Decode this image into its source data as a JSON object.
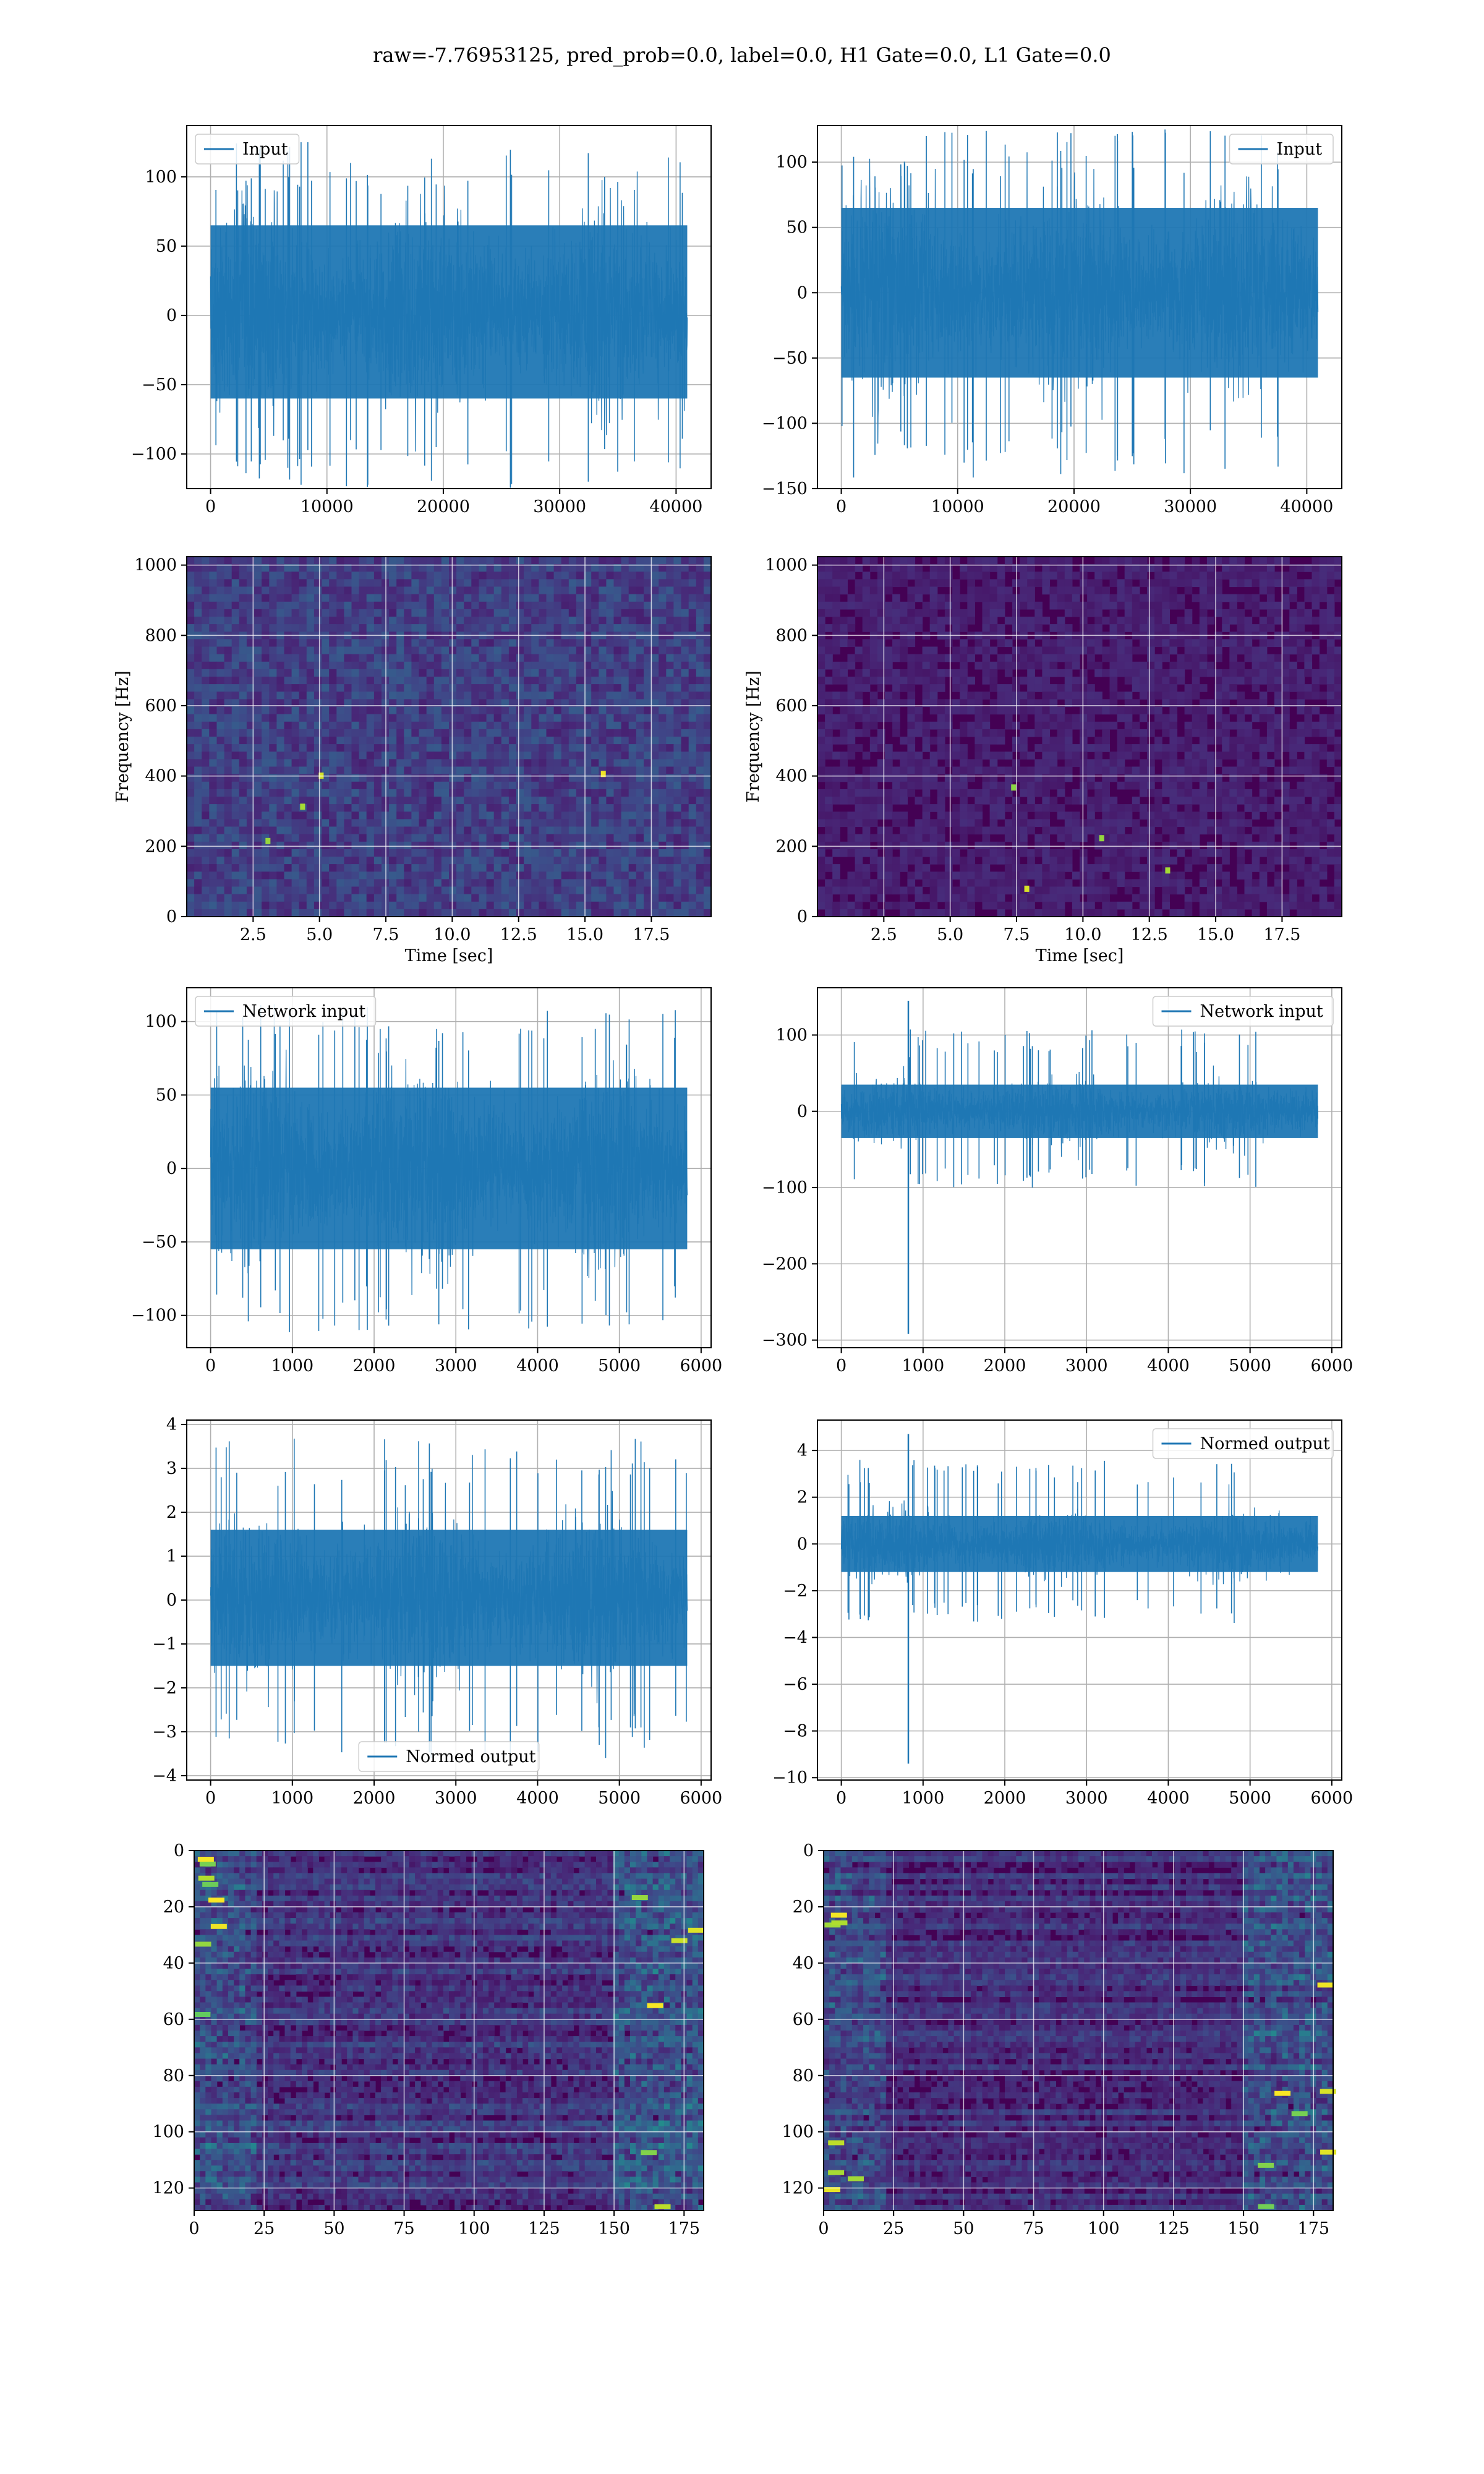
{
  "figure_title": "raw=-7.76953125, pred_prob=0.0, label=0.0, H1 Gate=0.0, L1 Gate=0.0",
  "colors": {
    "line": "#1f77b4",
    "viridis_low": "#440154",
    "viridis_mid": "#21918c",
    "viridis_high": "#fde725",
    "grid": "#b0b0b0"
  },
  "chart_data": [
    {
      "id": "h1-input",
      "type": "line",
      "series_name": "Input",
      "legend": "upper left",
      "x_range": [
        0,
        40960
      ],
      "xlim": [
        -2048,
        43008
      ],
      "ylim": [
        -125,
        137
      ],
      "x_ticks": [
        0,
        10000,
        20000,
        30000,
        40000
      ],
      "x_tick_labels": [
        "0",
        "10000",
        "20000",
        "30000",
        "40000"
      ],
      "y_ticks": [
        -100,
        -50,
        0,
        50,
        100
      ],
      "y_tick_labels": [
        "−100",
        "−50",
        "0",
        "50",
        "100"
      ],
      "envelope": {
        "core": [
          -60,
          65
        ],
        "peak": [
          -125,
          125
        ]
      },
      "grid": true
    },
    {
      "id": "l1-input",
      "type": "line",
      "series_name": "Input",
      "legend": "upper right",
      "x_range": [
        0,
        40960
      ],
      "xlim": [
        -2048,
        43008
      ],
      "ylim": [
        -150,
        128
      ],
      "x_ticks": [
        0,
        10000,
        20000,
        30000,
        40000
      ],
      "x_tick_labels": [
        "0",
        "10000",
        "20000",
        "30000",
        "40000"
      ],
      "y_ticks": [
        -150,
        -100,
        -50,
        0,
        50,
        100
      ],
      "y_tick_labels": [
        "−150",
        "−100",
        "−50",
        "0",
        "50",
        "100"
      ],
      "envelope": {
        "core": [
          -65,
          65
        ],
        "peak": [
          -142,
          125
        ]
      },
      "grid": true
    },
    {
      "id": "h1-spectrogram",
      "type": "heatmap",
      "colormap": "viridis",
      "xlim": [
        0,
        19.75
      ],
      "ylim": [
        0,
        1024
      ],
      "x_ticks": [
        2.5,
        5.0,
        7.5,
        10.0,
        12.5,
        15.0,
        17.5
      ],
      "x_tick_labels": [
        "2.5",
        "5.0",
        "7.5",
        "10.0",
        "12.5",
        "15.0",
        "17.5"
      ],
      "y_ticks": [
        0,
        200,
        400,
        600,
        800,
        1000
      ],
      "y_tick_labels": [
        "0",
        "200",
        "400",
        "600",
        "800",
        "1000"
      ],
      "xlabel": "Time [sec]",
      "ylabel": "Frequency [Hz]",
      "background_level": 0.22,
      "grid": true
    },
    {
      "id": "l1-spectrogram",
      "type": "heatmap",
      "colormap": "viridis",
      "xlim": [
        0,
        19.75
      ],
      "ylim": [
        0,
        1024
      ],
      "x_ticks": [
        2.5,
        5.0,
        7.5,
        10.0,
        12.5,
        15.0,
        17.5
      ],
      "x_tick_labels": [
        "2.5",
        "5.0",
        "7.5",
        "10.0",
        "12.5",
        "15.0",
        "17.5"
      ],
      "y_ticks": [
        0,
        200,
        400,
        600,
        800,
        1000
      ],
      "y_tick_labels": [
        "0",
        "200",
        "400",
        "600",
        "800",
        "1000"
      ],
      "xlabel": "Time [sec]",
      "ylabel": "Frequency [Hz]",
      "background_level": 0.1,
      "grid": true
    },
    {
      "id": "h1-network-input",
      "type": "line",
      "series_name": "Network input",
      "legend": "upper left",
      "x_range": [
        0,
        5830
      ],
      "xlim": [
        -292,
        6122
      ],
      "ylim": [
        -122,
        123
      ],
      "x_ticks": [
        0,
        1000,
        2000,
        3000,
        4000,
        5000,
        6000
      ],
      "x_tick_labels": [
        "0",
        "1000",
        "2000",
        "3000",
        "4000",
        "5000",
        "6000"
      ],
      "y_ticks": [
        -100,
        -50,
        0,
        50,
        100
      ],
      "y_tick_labels": [
        "−100",
        "−50",
        "0",
        "50",
        "100"
      ],
      "envelope": {
        "core": [
          -55,
          55
        ],
        "peak": [
          -112,
          112
        ]
      },
      "grid": true
    },
    {
      "id": "l1-network-input",
      "type": "line",
      "series_name": "Network input",
      "legend": "upper right",
      "x_range": [
        0,
        5830
      ],
      "xlim": [
        -292,
        6122
      ],
      "ylim": [
        -310,
        162
      ],
      "x_ticks": [
        0,
        1000,
        2000,
        3000,
        4000,
        5000,
        6000
      ],
      "x_tick_labels": [
        "0",
        "1000",
        "2000",
        "3000",
        "4000",
        "5000",
        "6000"
      ],
      "y_ticks": [
        -300,
        -200,
        -100,
        0,
        100
      ],
      "y_tick_labels": [
        "−300",
        "−200",
        "−100",
        "0",
        "100"
      ],
      "envelope": {
        "core": [
          -35,
          35
        ],
        "peak": [
          -100,
          110
        ]
      },
      "glitch": {
        "x": 820,
        "min": -292,
        "max": 145
      },
      "grid": true
    },
    {
      "id": "h1-normed-output",
      "type": "line",
      "series_name": "Normed output",
      "legend": "lower center",
      "x_range": [
        0,
        5830
      ],
      "xlim": [
        -292,
        6122
      ],
      "ylim": [
        -4.1,
        4.1
      ],
      "x_ticks": [
        0,
        1000,
        2000,
        3000,
        4000,
        5000,
        6000
      ],
      "x_tick_labels": [
        "0",
        "1000",
        "2000",
        "3000",
        "4000",
        "5000",
        "6000"
      ],
      "y_ticks": [
        -4,
        -3,
        -2,
        -1,
        0,
        1,
        2,
        3,
        4
      ],
      "y_tick_labels": [
        "−4",
        "−3",
        "−2",
        "−1",
        "0",
        "1",
        "2",
        "3",
        "4"
      ],
      "envelope": {
        "core": [
          -1.5,
          1.6
        ],
        "peak": [
          -3.6,
          3.7
        ]
      },
      "grid": true
    },
    {
      "id": "l1-normed-output",
      "type": "line",
      "series_name": "Normed output",
      "legend": "upper right",
      "x_range": [
        0,
        5830
      ],
      "xlim": [
        -292,
        6122
      ],
      "ylim": [
        -10.1,
        5.3
      ],
      "x_ticks": [
        0,
        1000,
        2000,
        3000,
        4000,
        5000,
        6000
      ],
      "x_tick_labels": [
        "0",
        "1000",
        "2000",
        "3000",
        "4000",
        "5000",
        "6000"
      ],
      "y_ticks": [
        -10,
        -8,
        -6,
        -4,
        -2,
        0,
        2,
        4
      ],
      "y_tick_labels": [
        "−10",
        "−8",
        "−6",
        "−4",
        "−2",
        "0",
        "2",
        "4"
      ],
      "envelope": {
        "core": [
          -1.2,
          1.2
        ],
        "peak": [
          -3.4,
          3.6
        ]
      },
      "glitch": {
        "x": 820,
        "min": -9.4,
        "max": 4.7
      },
      "grid": true
    },
    {
      "id": "h1-features",
      "type": "heatmap",
      "colormap": "viridis",
      "xlim": [
        0,
        182
      ],
      "ylim": [
        128,
        0
      ],
      "x_ticks": [
        0,
        25,
        50,
        75,
        100,
        125,
        150,
        175
      ],
      "x_tick_labels": [
        "0",
        "25",
        "50",
        "75",
        "100",
        "125",
        "150",
        "175"
      ],
      "y_ticks": [
        0,
        20,
        40,
        60,
        80,
        100,
        120
      ],
      "y_tick_labels": [
        "0",
        "20",
        "40",
        "60",
        "80",
        "100",
        "120"
      ],
      "background_level": 0.18,
      "grid": true
    },
    {
      "id": "l1-features",
      "type": "heatmap",
      "colormap": "viridis",
      "xlim": [
        0,
        182
      ],
      "ylim": [
        128,
        0
      ],
      "x_ticks": [
        0,
        25,
        50,
        75,
        100,
        125,
        150,
        175
      ],
      "x_tick_labels": [
        "0",
        "25",
        "50",
        "75",
        "100",
        "125",
        "150",
        "175"
      ],
      "y_ticks": [
        0,
        20,
        40,
        60,
        80,
        100,
        120
      ],
      "y_tick_labels": [
        "0",
        "20",
        "40",
        "60",
        "80",
        "100",
        "120"
      ],
      "background_level": 0.15,
      "grid": true
    }
  ]
}
